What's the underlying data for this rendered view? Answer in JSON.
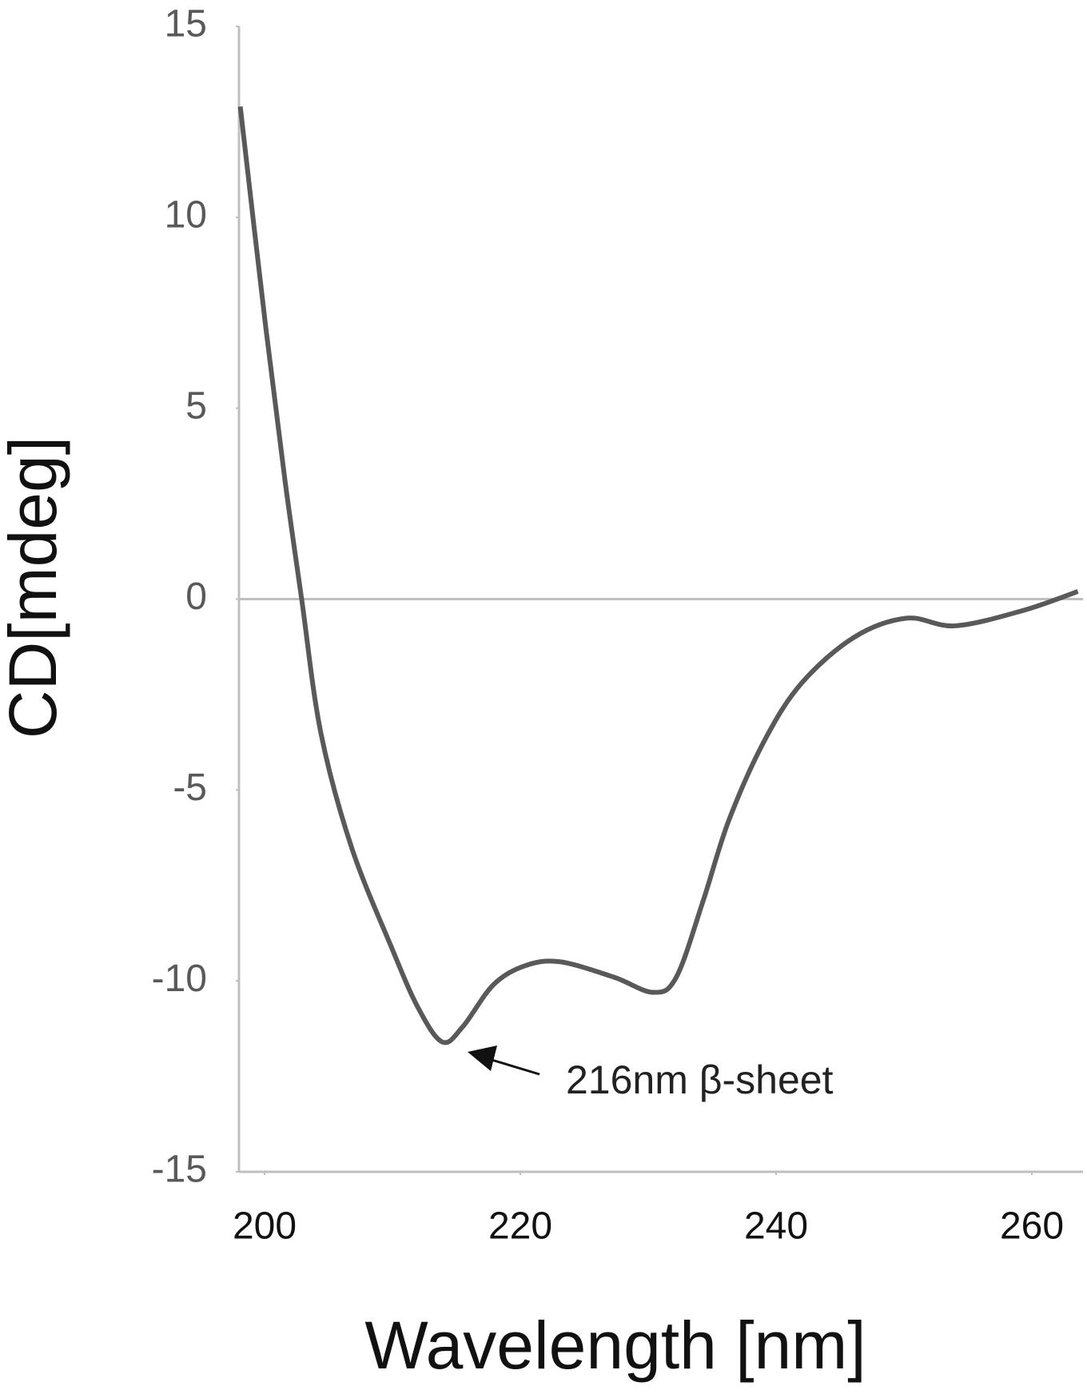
{
  "chart_data": {
    "type": "line",
    "x_label": "Wavelength [nm]",
    "y_label": "CD[mdeg]",
    "annotation": "216nm β-sheet",
    "series": [
      {
        "color": "#595959",
        "x": [
          198.1,
          200.1,
          201.6,
          202.9,
          204.4,
          206.8,
          209.9,
          212.0,
          213.9,
          215.5,
          217.9,
          220.4,
          223.1,
          227.3,
          230.4,
          232.2,
          234.3,
          236.3,
          239.1,
          242.0,
          246.1,
          250.2,
          254.0,
          259.3,
          263.6
        ],
        "values": [
          12.9,
          7.1,
          3.1,
          0,
          -3.5,
          -6.5,
          -9.1,
          -10.7,
          -11.6,
          -11.2,
          -10.1,
          -9.6,
          -9.5,
          -9.9,
          -10.3,
          -9.9,
          -7.9,
          -5.8,
          -3.7,
          -2.2,
          -1.0,
          -0.5,
          -0.7,
          -0.3,
          0.2
        ]
      }
    ],
    "xlim": [
      198,
      264
    ],
    "xticks": [
      200,
      220,
      240,
      260
    ],
    "ylim": [
      -15,
      15
    ],
    "yticks": [
      -15,
      -10,
      -5,
      0,
      5,
      10,
      15
    ]
  }
}
